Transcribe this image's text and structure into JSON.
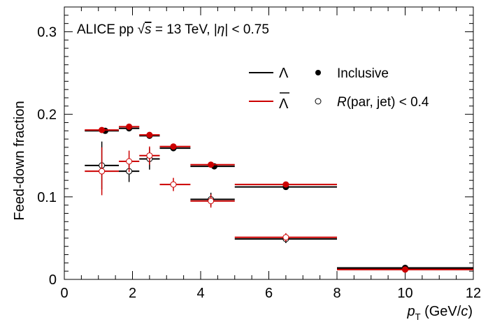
{
  "chart_data": {
    "type": "scatter",
    "title": "ALICE pp √s = 13 TeV, |η| < 0.75",
    "title_parts": {
      "prefix": "ALICE pp ",
      "sqrt": "s",
      "energy": " = 13 TeV, |",
      "eta": "η",
      "suffix": "| < 0.75"
    },
    "ylabel": "Feed-down fraction",
    "xlabel": "p_T (GeV/c)",
    "xlabel_parts": {
      "p": "p",
      "sub": "T",
      "open": " (GeV/",
      "c": "c",
      "close": ")"
    },
    "xlim": [
      0,
      12
    ],
    "ylim": [
      0,
      0.33
    ],
    "x_ticks": [
      "0",
      "2",
      "4",
      "6",
      "8",
      "10",
      "12"
    ],
    "y_ticks": [
      "0",
      "0.1",
      "0.2",
      "0.3"
    ],
    "legend": {
      "placement": "top-right",
      "lambda": "Λ",
      "antilambda": "Λ",
      "inclusive": "Inclusive",
      "jet_prefix": "R",
      "jet_suffix": "(par, jet) < 0.4"
    },
    "colors": {
      "lambda": "#000000",
      "antilambda": "#cc0000"
    },
    "series": [
      {
        "particle": "Λ",
        "selection": "Inclusive",
        "color": "#000000",
        "marker": "filled-circle",
        "points": [
          {
            "x": 1.2,
            "xlo": 0.6,
            "xhi": 1.6,
            "y": 0.18,
            "yerr": 0.003
          },
          {
            "x": 1.9,
            "xlo": 1.6,
            "xhi": 2.2,
            "y": 0.183,
            "yerr": 0.003
          },
          {
            "x": 2.5,
            "xlo": 2.2,
            "xhi": 2.8,
            "y": 0.174,
            "yerr": 0.003
          },
          {
            "x": 3.2,
            "xlo": 2.8,
            "xhi": 3.7,
            "y": 0.159,
            "yerr": 0.003
          },
          {
            "x": 4.4,
            "xlo": 3.7,
            "xhi": 5.0,
            "y": 0.137,
            "yerr": 0.003
          },
          {
            "x": 6.5,
            "xlo": 5.0,
            "xhi": 8.0,
            "y": 0.112,
            "yerr": 0.003
          },
          {
            "x": 10.0,
            "xlo": 8.0,
            "xhi": 12.0,
            "y": 0.014,
            "yerr": 0.002
          }
        ]
      },
      {
        "particle": "anti-Λ",
        "selection": "Inclusive",
        "color": "#cc0000",
        "marker": "filled-circle",
        "points": [
          {
            "x": 1.1,
            "xlo": 0.6,
            "xhi": 1.6,
            "y": 0.181,
            "yerr": 0.003
          },
          {
            "x": 1.9,
            "xlo": 1.6,
            "xhi": 2.2,
            "y": 0.185,
            "yerr": 0.003
          },
          {
            "x": 2.5,
            "xlo": 2.2,
            "xhi": 2.8,
            "y": 0.175,
            "yerr": 0.003
          },
          {
            "x": 3.2,
            "xlo": 2.8,
            "xhi": 3.7,
            "y": 0.161,
            "yerr": 0.003
          },
          {
            "x": 4.3,
            "xlo": 3.7,
            "xhi": 5.0,
            "y": 0.139,
            "yerr": 0.003
          },
          {
            "x": 6.5,
            "xlo": 5.0,
            "xhi": 8.0,
            "y": 0.115,
            "yerr": 0.003
          },
          {
            "x": 10.0,
            "xlo": 8.0,
            "xhi": 12.0,
            "y": 0.012,
            "yerr": 0.002
          }
        ]
      },
      {
        "particle": "Λ",
        "selection": "R(par, jet) < 0.4",
        "color": "#000000",
        "marker": "open-circle",
        "points": [
          {
            "x": 1.1,
            "xlo": 0.6,
            "xhi": 1.6,
            "y": 0.138,
            "yerr": 0.029
          },
          {
            "x": 1.9,
            "xlo": 1.6,
            "xhi": 2.2,
            "y": 0.131,
            "yerr": 0.013
          },
          {
            "x": 2.5,
            "xlo": 2.2,
            "xhi": 2.8,
            "y": 0.146,
            "yerr": 0.013
          },
          {
            "x": 4.3,
            "xlo": 3.7,
            "xhi": 5.0,
            "y": 0.097,
            "yerr": 0.008
          },
          {
            "x": 6.5,
            "xlo": 5.0,
            "xhi": 8.0,
            "y": 0.049,
            "yerr": 0.005
          },
          {
            "x": 10.0,
            "xlo": 8.0,
            "xhi": 12.0,
            "y": 0.013,
            "yerr": 0.002
          }
        ]
      },
      {
        "particle": "anti-Λ",
        "selection": "R(par, jet) < 0.4",
        "color": "#cc0000",
        "marker": "open-circle",
        "points": [
          {
            "x": 1.1,
            "xlo": 0.6,
            "xhi": 1.6,
            "y": 0.131,
            "yerr": 0.029
          },
          {
            "x": 1.9,
            "xlo": 1.6,
            "xhi": 2.2,
            "y": 0.143,
            "yerr": 0.013
          },
          {
            "x": 2.5,
            "xlo": 2.2,
            "xhi": 2.8,
            "y": 0.15,
            "yerr": 0.011
          },
          {
            "x": 3.2,
            "xlo": 2.8,
            "xhi": 3.7,
            "y": 0.115,
            "yerr": 0.008
          },
          {
            "x": 4.3,
            "xlo": 3.7,
            "xhi": 5.0,
            "y": 0.095,
            "yerr": 0.008
          },
          {
            "x": 6.5,
            "xlo": 5.0,
            "xhi": 8.0,
            "y": 0.051,
            "yerr": 0.005
          },
          {
            "x": 10.0,
            "xlo": 8.0,
            "xhi": 12.0,
            "y": 0.012,
            "yerr": 0.002
          }
        ]
      }
    ]
  }
}
